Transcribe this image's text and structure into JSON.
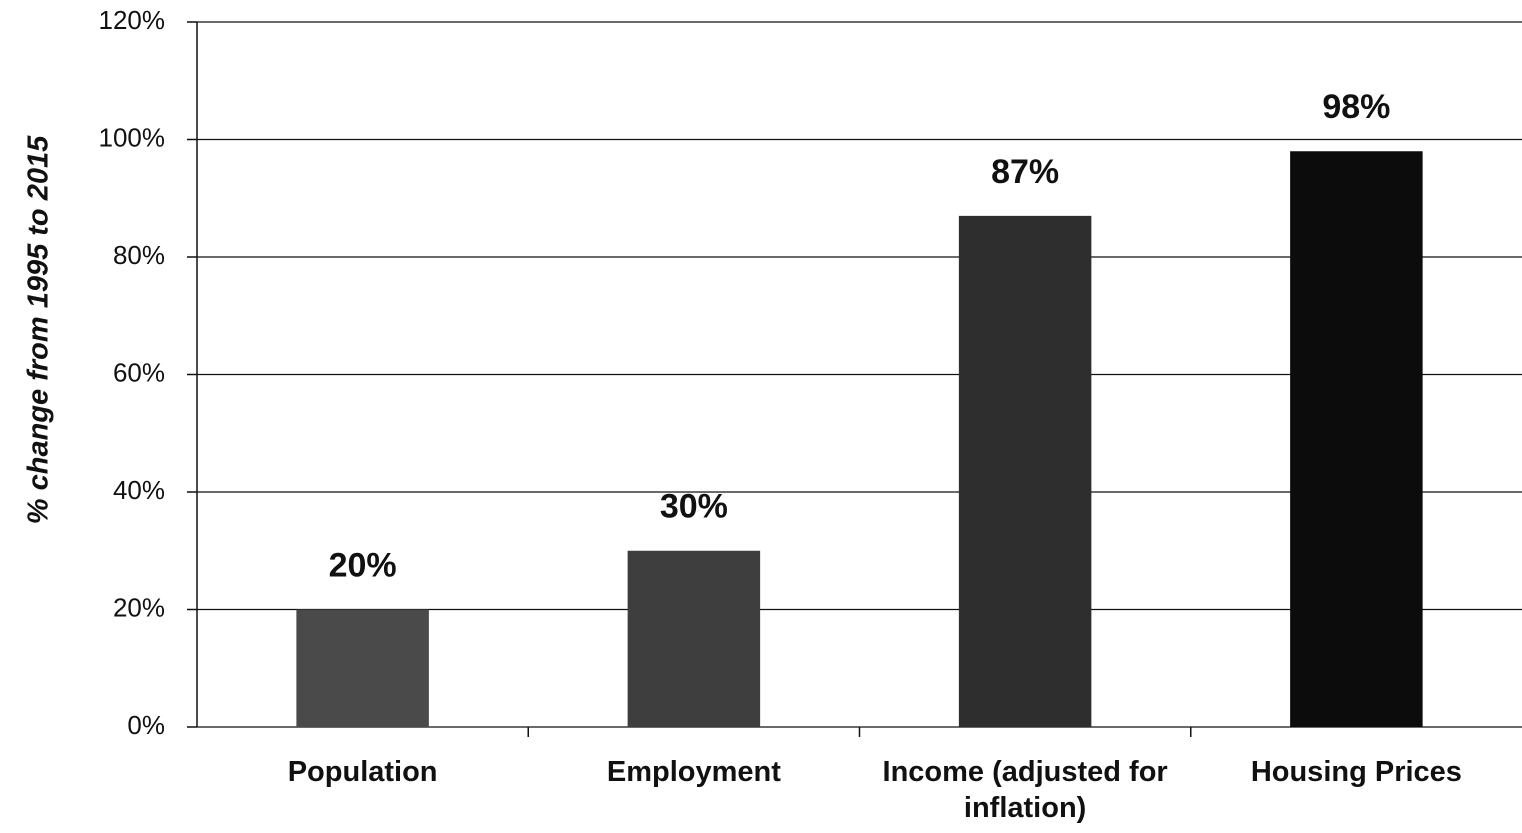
{
  "chart_data": {
    "type": "bar",
    "y_label": "% change from 1995 to 2015",
    "categories": [
      "Population",
      "Employment",
      "Income (adjusted for inflation)",
      "Housing Prices"
    ],
    "values": [
      20,
      30,
      87,
      98
    ],
    "value_labels": [
      "20%",
      "30%",
      "87%",
      "98%"
    ],
    "colors": [
      "#4a4a4a",
      "#3e3e3e",
      "#2e2e2e",
      "#0c0c0c"
    ],
    "ylim": [
      0,
      120
    ],
    "yticks": [
      {
        "value": 0,
        "label": "0%"
      },
      {
        "value": 20,
        "label": "20%"
      },
      {
        "value": 40,
        "label": "40%"
      },
      {
        "value": 60,
        "label": "60%"
      },
      {
        "value": 80,
        "label": "80%"
      },
      {
        "value": 100,
        "label": "100%"
      },
      {
        "value": 120,
        "label": "120%"
      }
    ],
    "grid": true
  }
}
